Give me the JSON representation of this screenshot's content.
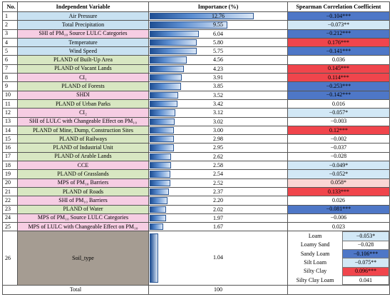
{
  "headers": {
    "no": "No.",
    "variable": "Independent Variable",
    "importance": "Importance (%)",
    "spearman": "Spearman Correlation Coefficient"
  },
  "rows": [
    {
      "no": "1",
      "variable": "Air Pressure",
      "importance": 12.76,
      "importance_text": "12.76",
      "spearman": "−0.104***",
      "var_color": "blue",
      "sp_color": "blue"
    },
    {
      "no": "2",
      "variable": "Total Precipitation",
      "importance": 9.55,
      "importance_text": "9.55",
      "spearman": "−0.073**",
      "var_color": "blue",
      "sp_color": "lblue"
    },
    {
      "no": "3",
      "variable": "SHI of PM₁₀ Source LULC Categories",
      "importance": 6.04,
      "importance_text": "6.04",
      "spearman": "−0.212***",
      "var_color": "pink",
      "sp_color": "blue"
    },
    {
      "no": "4",
      "variable": "Temperature",
      "importance": 5.8,
      "importance_text": "5.80",
      "spearman": "0.176***",
      "var_color": "blue",
      "sp_color": "red"
    },
    {
      "no": "5",
      "variable": "Wind Speed",
      "importance": 5.75,
      "importance_text": "5.75",
      "spearman": "−0.141***",
      "var_color": "blue",
      "sp_color": "blue"
    },
    {
      "no": "6",
      "variable": "PLAND of Built-Up Area",
      "importance": 4.56,
      "importance_text": "4.56",
      "spearman": "0.036",
      "var_color": "green",
      "sp_color": "none"
    },
    {
      "no": "7",
      "variable": "PLAND of Vacant Lands",
      "importance": 4.23,
      "importance_text": "4.23",
      "spearman": "0.145***",
      "var_color": "green",
      "sp_color": "red"
    },
    {
      "no": "8",
      "variable": "CI₁",
      "importance": 3.91,
      "importance_text": "3.91",
      "spearman": "0.114***",
      "var_color": "pink",
      "sp_color": "red"
    },
    {
      "no": "9",
      "variable": "PLAND of Forests",
      "importance": 3.85,
      "importance_text": "3.85",
      "spearman": "−0.253***",
      "var_color": "green",
      "sp_color": "blue"
    },
    {
      "no": "10",
      "variable": "SHDI",
      "importance": 3.52,
      "importance_text": "3.52",
      "spearman": "−0.142***",
      "var_color": "pink",
      "sp_color": "blue"
    },
    {
      "no": "11",
      "variable": "PLAND of Urban Parks",
      "importance": 3.42,
      "importance_text": "3.42",
      "spearman": "0.016",
      "var_color": "green",
      "sp_color": "none"
    },
    {
      "no": "12",
      "variable": "CI₂",
      "importance": 3.12,
      "importance_text": "3.12",
      "spearman": "−0.057*",
      "var_color": "pink",
      "sp_color": "lblue"
    },
    {
      "no": "13",
      "variable": "SHI of LULC with Changeable Effect on PM₁₀",
      "importance": 3.02,
      "importance_text": "3.02",
      "spearman": "−0.003",
      "var_color": "pink",
      "sp_color": "none"
    },
    {
      "no": "14",
      "variable": "PLAND of Mine, Dump, Construction Sites",
      "importance": 3.0,
      "importance_text": "3.00",
      "spearman": "0.12***",
      "var_color": "green",
      "sp_color": "red"
    },
    {
      "no": "15",
      "variable": "PLAND of Railways",
      "importance": 2.98,
      "importance_text": "2.98",
      "spearman": "−0.002",
      "var_color": "green",
      "sp_color": "none"
    },
    {
      "no": "16",
      "variable": "PLAND of Industrial Unit",
      "importance": 2.95,
      "importance_text": "2.95",
      "spearman": "−0.037",
      "var_color": "green",
      "sp_color": "none"
    },
    {
      "no": "17",
      "variable": "PLAND of Arable Lands",
      "importance": 2.62,
      "importance_text": "2.62",
      "spearman": "−0.028",
      "var_color": "green",
      "sp_color": "none"
    },
    {
      "no": "18",
      "variable": "CCE",
      "importance": 2.58,
      "importance_text": "2.58",
      "spearman": "−0.049*",
      "var_color": "pink",
      "sp_color": "lblue"
    },
    {
      "no": "19",
      "variable": "PLAND of Grasslands",
      "importance": 2.54,
      "importance_text": "2.54",
      "spearman": "−0.052*",
      "var_color": "green",
      "sp_color": "lblue"
    },
    {
      "no": "20",
      "variable": "MPS of PM₁₀ Barriers",
      "importance": 2.52,
      "importance_text": "2.52",
      "spearman": "0.058*",
      "var_color": "pink",
      "sp_color": "pink"
    },
    {
      "no": "21",
      "variable": "PLAND of Roads",
      "importance": 2.37,
      "importance_text": "2.37",
      "spearman": "0.133***",
      "var_color": "green",
      "sp_color": "red"
    },
    {
      "no": "22",
      "variable": "SHI of PM₁₀ Barriers",
      "importance": 2.2,
      "importance_text": "2.20",
      "spearman": "0.026",
      "var_color": "pink",
      "sp_color": "none"
    },
    {
      "no": "23",
      "variable": "PLAND of Water",
      "importance": 2.02,
      "importance_text": "2.02",
      "spearman": "−0.081***",
      "var_color": "green",
      "sp_color": "blue"
    },
    {
      "no": "24",
      "variable": "MPS of PM₁₀ Source LULC Categories",
      "importance": 1.97,
      "importance_text": "1.97",
      "spearman": "−0.006",
      "var_color": "pink",
      "sp_color": "none"
    },
    {
      "no": "25",
      "variable": "MPS of LULC with Changeable Effect on PM₁₀",
      "importance": 1.67,
      "importance_text": "1.67",
      "spearman": "0.023",
      "var_color": "pink",
      "sp_color": "none"
    }
  ],
  "soil": {
    "no": "26",
    "variable": "Soil_type",
    "importance": 1.04,
    "importance_text": "1.04",
    "types": [
      {
        "name": "Loam",
        "value": "−0.053*",
        "color": "lblue"
      },
      {
        "name": "Loamy Sand",
        "value": "−0.028",
        "color": "none"
      },
      {
        "name": "Sandy Loam",
        "value": "−0.106***",
        "color": "blue"
      },
      {
        "name": "Silt Loam",
        "value": "−0.075**",
        "color": "lblue"
      },
      {
        "name": "Silty Clay",
        "value": "0.096***",
        "color": "red"
      },
      {
        "name": "Silty Clay Loam",
        "value": "0.041",
        "color": "none"
      }
    ]
  },
  "total": {
    "label": "Total",
    "importance": "100"
  },
  "colors": {
    "var_blue": "#c8e1f1",
    "var_pink": "#f6cde3",
    "var_green": "#d8e7c2",
    "var_gray": "#a59c92",
    "sp_red": "#f0454c",
    "sp_pink": "#fad6d4",
    "sp_blue": "#4e77c7",
    "sp_lblue": "#d2e8f6"
  }
}
